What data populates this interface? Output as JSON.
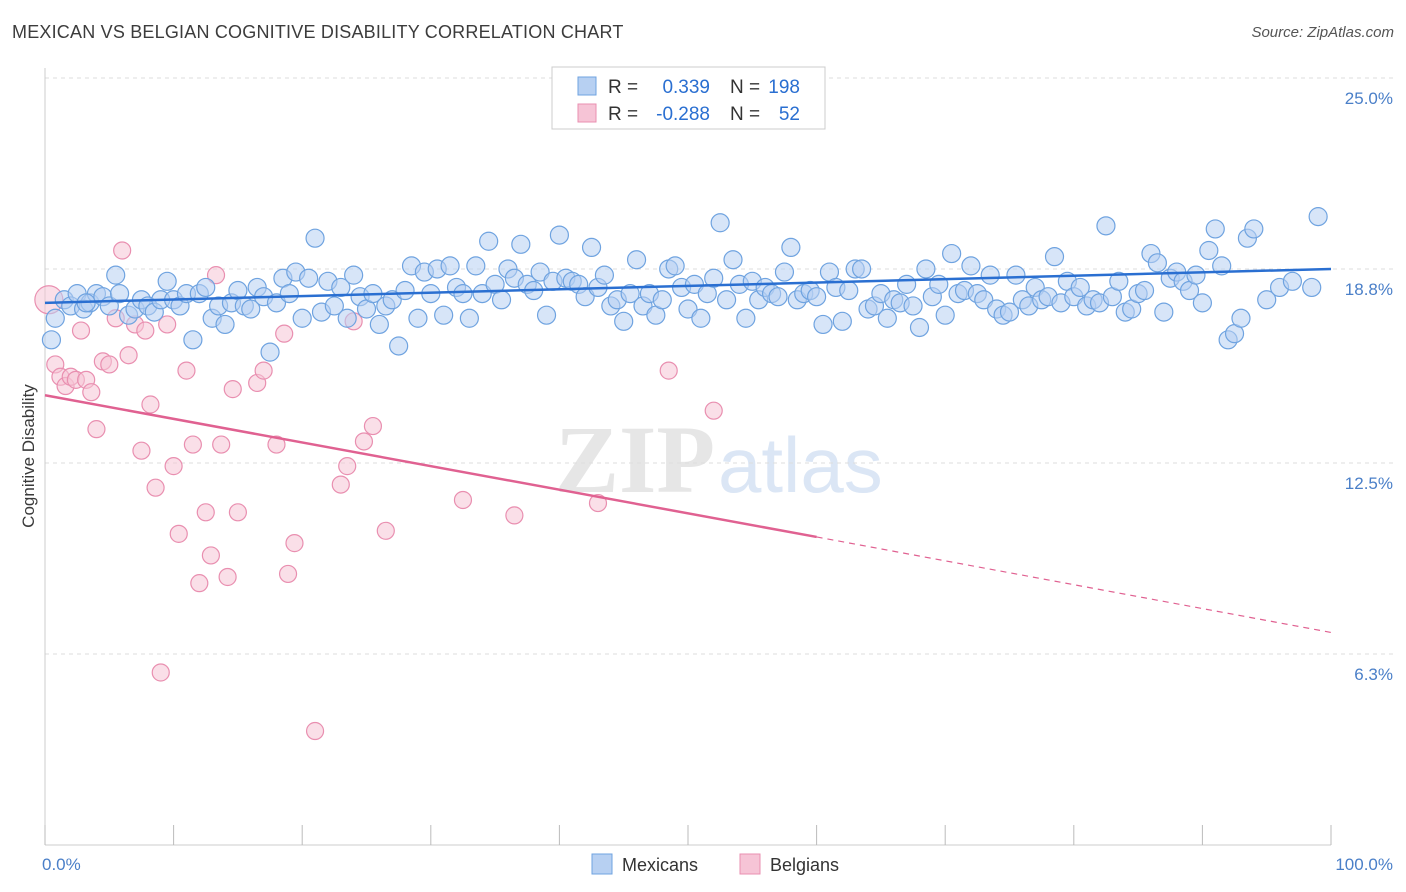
{
  "header": {
    "title": "MEXICAN VS BELGIAN COGNITIVE DISABILITY CORRELATION CHART",
    "source": "Source: ZipAtlas.com"
  },
  "watermark": {
    "zip": "ZIP",
    "atlas": "atlas"
  },
  "colors": {
    "mexicans": "#6fa3e0",
    "mexicans_fill": "#b7d0f2",
    "mexicans_line": "#2a6fd1",
    "belgians": "#e98fb0",
    "belgians_fill": "#f6c4d6",
    "belgians_line": "#e06191",
    "tick_text": "#4a7fc8",
    "grid": "#dddddd"
  },
  "legend": {
    "rows": [
      {
        "r_label": "R =",
        "r_value": "0.339",
        "n_label": "N =",
        "n_value": "198"
      },
      {
        "r_label": "R =",
        "r_value": "-0.288",
        "n_label": "N =",
        "n_value": "52"
      }
    ]
  },
  "chart_data": {
    "type": "scatter",
    "title": "MEXICAN VS BELGIAN COGNITIVE DISABILITY CORRELATION CHART",
    "xlabel": "",
    "ylabel": "Cognitive Disability",
    "xlim": [
      0,
      100
    ],
    "ylim": [
      0,
      26.0
    ],
    "y_ticks": [
      {
        "value": 6.3,
        "label": "6.3%"
      },
      {
        "value": 12.5,
        "label": "12.5%"
      },
      {
        "value": 18.8,
        "label": "18.8%"
      },
      {
        "value": 25.0,
        "label": "25.0%"
      }
    ],
    "x_tick_labels": {
      "min": "0.0%",
      "max": "100.0%"
    },
    "grid": true,
    "legend_position": "top-center",
    "series": [
      {
        "name": "Mexicans",
        "r": 0.339,
        "n": 198,
        "trend": {
          "x": [
            0,
            100
          ],
          "y": [
            17.7,
            18.8
          ]
        },
        "points": [
          [
            0.5,
            16.5
          ],
          [
            0.8,
            17.2
          ],
          [
            1.5,
            17.8
          ],
          [
            2.0,
            17.6
          ],
          [
            2.5,
            18.0
          ],
          [
            3.0,
            17.5
          ],
          [
            3.5,
            17.7
          ],
          [
            4.0,
            18.0
          ],
          [
            4.5,
            17.9
          ],
          [
            5.0,
            17.6
          ],
          [
            5.5,
            18.6
          ],
          [
            5.8,
            18.0
          ],
          [
            6.5,
            17.3
          ],
          [
            7.0,
            17.5
          ],
          [
            7.5,
            17.8
          ],
          [
            8.0,
            17.6
          ],
          [
            8.5,
            17.4
          ],
          [
            9.0,
            17.8
          ],
          [
            9.5,
            18.4
          ],
          [
            10.0,
            17.8
          ],
          [
            10.5,
            17.6
          ],
          [
            11.0,
            18.0
          ],
          [
            11.5,
            16.5
          ],
          [
            12.0,
            18.0
          ],
          [
            12.5,
            18.2
          ],
          [
            13.0,
            17.2
          ],
          [
            13.5,
            17.6
          ],
          [
            14.0,
            17.0
          ],
          [
            14.5,
            17.7
          ],
          [
            15.0,
            18.1
          ],
          [
            15.5,
            17.6
          ],
          [
            16.0,
            17.5
          ],
          [
            16.5,
            18.2
          ],
          [
            17.0,
            17.9
          ],
          [
            17.5,
            16.1
          ],
          [
            18.0,
            17.7
          ],
          [
            18.5,
            18.5
          ],
          [
            19.0,
            18.0
          ],
          [
            19.5,
            18.7
          ],
          [
            20.0,
            17.2
          ],
          [
            20.5,
            18.5
          ],
          [
            21.0,
            19.8
          ],
          [
            21.5,
            17.4
          ],
          [
            22.0,
            18.4
          ],
          [
            22.5,
            17.6
          ],
          [
            23.0,
            18.2
          ],
          [
            23.5,
            17.2
          ],
          [
            24.0,
            18.6
          ],
          [
            24.5,
            17.9
          ],
          [
            25.0,
            17.5
          ],
          [
            25.5,
            18.0
          ],
          [
            26.0,
            17.0
          ],
          [
            26.5,
            17.6
          ],
          [
            27.0,
            17.8
          ],
          [
            27.5,
            16.3
          ],
          [
            28.0,
            18.1
          ],
          [
            28.5,
            18.9
          ],
          [
            29.0,
            17.2
          ],
          [
            29.5,
            18.7
          ],
          [
            30.0,
            18.0
          ],
          [
            30.5,
            18.8
          ],
          [
            31.0,
            17.3
          ],
          [
            31.5,
            18.9
          ],
          [
            32.0,
            18.2
          ],
          [
            32.5,
            18.0
          ],
          [
            33.0,
            17.2
          ],
          [
            33.5,
            18.9
          ],
          [
            34.0,
            18.0
          ],
          [
            34.5,
            19.7
          ],
          [
            35.0,
            18.3
          ],
          [
            35.5,
            17.8
          ],
          [
            36.0,
            18.8
          ],
          [
            36.5,
            18.5
          ],
          [
            37.0,
            19.6
          ],
          [
            37.5,
            18.3
          ],
          [
            38.0,
            18.1
          ],
          [
            38.5,
            18.7
          ],
          [
            39.0,
            17.3
          ],
          [
            39.5,
            18.4
          ],
          [
            40.0,
            19.9
          ],
          [
            40.5,
            18.5
          ],
          [
            41.0,
            18.4
          ],
          [
            41.5,
            18.3
          ],
          [
            42.0,
            17.9
          ],
          [
            42.5,
            19.5
          ],
          [
            43.0,
            18.2
          ],
          [
            43.5,
            18.6
          ],
          [
            44.0,
            17.6
          ],
          [
            44.5,
            17.8
          ],
          [
            45.0,
            17.1
          ],
          [
            45.5,
            18.0
          ],
          [
            46.0,
            19.1
          ],
          [
            46.5,
            17.6
          ],
          [
            47.0,
            18.0
          ],
          [
            47.5,
            17.3
          ],
          [
            48.0,
            17.8
          ],
          [
            48.5,
            18.8
          ],
          [
            49.0,
            18.9
          ],
          [
            49.5,
            18.2
          ],
          [
            50.0,
            17.5
          ],
          [
            50.5,
            18.3
          ],
          [
            51.0,
            17.2
          ],
          [
            51.5,
            18.0
          ],
          [
            52.0,
            18.5
          ],
          [
            52.5,
            20.3
          ],
          [
            53.0,
            17.8
          ],
          [
            53.5,
            19.1
          ],
          [
            54.0,
            18.3
          ],
          [
            54.5,
            17.2
          ],
          [
            55.0,
            18.4
          ],
          [
            55.5,
            17.8
          ],
          [
            56.0,
            18.2
          ],
          [
            56.5,
            18.0
          ],
          [
            57.0,
            17.9
          ],
          [
            57.5,
            18.7
          ],
          [
            58.0,
            19.5
          ],
          [
            58.5,
            17.8
          ],
          [
            59.0,
            18.0
          ],
          [
            59.5,
            18.1
          ],
          [
            60.0,
            17.9
          ],
          [
            60.5,
            17.0
          ],
          [
            61.0,
            18.7
          ],
          [
            61.5,
            18.2
          ],
          [
            62.0,
            17.1
          ],
          [
            62.5,
            18.1
          ],
          [
            63.0,
            18.8
          ],
          [
            63.5,
            18.8
          ],
          [
            64.0,
            17.5
          ],
          [
            64.5,
            17.6
          ],
          [
            65.0,
            18.0
          ],
          [
            65.5,
            17.2
          ],
          [
            66.0,
            17.8
          ],
          [
            66.5,
            17.7
          ],
          [
            67.0,
            18.3
          ],
          [
            67.5,
            17.6
          ],
          [
            68.0,
            16.9
          ],
          [
            68.5,
            18.8
          ],
          [
            69.0,
            17.9
          ],
          [
            69.5,
            18.3
          ],
          [
            70.0,
            17.3
          ],
          [
            70.5,
            19.3
          ],
          [
            71.0,
            18.0
          ],
          [
            71.5,
            18.1
          ],
          [
            72.0,
            18.9
          ],
          [
            72.5,
            18.0
          ],
          [
            73.0,
            17.8
          ],
          [
            73.5,
            18.6
          ],
          [
            74.0,
            17.5
          ],
          [
            74.5,
            17.3
          ],
          [
            75.0,
            17.4
          ],
          [
            75.5,
            18.6
          ],
          [
            76.0,
            17.8
          ],
          [
            76.5,
            17.6
          ],
          [
            77.0,
            18.2
          ],
          [
            77.5,
            17.8
          ],
          [
            78.0,
            17.9
          ],
          [
            78.5,
            19.2
          ],
          [
            79.0,
            17.7
          ],
          [
            79.5,
            18.4
          ],
          [
            80.0,
            17.9
          ],
          [
            80.5,
            18.2
          ],
          [
            81.0,
            17.6
          ],
          [
            81.5,
            17.8
          ],
          [
            82.0,
            17.7
          ],
          [
            82.5,
            20.2
          ],
          [
            83.0,
            17.9
          ],
          [
            83.5,
            18.4
          ],
          [
            84.0,
            17.4
          ],
          [
            84.5,
            17.5
          ],
          [
            85.0,
            18.0
          ],
          [
            85.5,
            18.1
          ],
          [
            86.0,
            19.3
          ],
          [
            86.5,
            19.0
          ],
          [
            87.0,
            17.4
          ],
          [
            87.5,
            18.5
          ],
          [
            88.0,
            18.7
          ],
          [
            88.5,
            18.4
          ],
          [
            89.0,
            18.1
          ],
          [
            89.5,
            18.6
          ],
          [
            90.0,
            17.7
          ],
          [
            90.5,
            19.4
          ],
          [
            91.0,
            20.1
          ],
          [
            91.5,
            18.9
          ],
          [
            92.0,
            16.5
          ],
          [
            92.5,
            16.7
          ],
          [
            93.0,
            17.2
          ],
          [
            93.5,
            19.8
          ],
          [
            94.0,
            20.1
          ],
          [
            95.0,
            17.8
          ],
          [
            96.0,
            18.2
          ],
          [
            97.0,
            18.4
          ],
          [
            98.5,
            18.2
          ],
          [
            99.0,
            20.5
          ],
          [
            3.2,
            17.7
          ]
        ]
      },
      {
        "name": "Belgians",
        "r": -0.288,
        "n": 52,
        "trend": {
          "x": [
            0,
            60
          ],
          "y": [
            14.7,
            10.1
          ]
        },
        "trend_extension": {
          "x": [
            60,
            100
          ],
          "y": [
            10.1,
            7.0
          ]
        },
        "points": [
          [
            0.3,
            17.8
          ],
          [
            0.8,
            15.7
          ],
          [
            1.2,
            15.3
          ],
          [
            1.6,
            15.0
          ],
          [
            2.0,
            15.3
          ],
          [
            2.4,
            15.2
          ],
          [
            2.8,
            16.8
          ],
          [
            3.2,
            15.2
          ],
          [
            3.6,
            14.8
          ],
          [
            4.0,
            13.6
          ],
          [
            4.5,
            15.8
          ],
          [
            5.0,
            15.7
          ],
          [
            5.5,
            17.2
          ],
          [
            6.0,
            19.4
          ],
          [
            6.5,
            16.0
          ],
          [
            7.0,
            17.0
          ],
          [
            7.5,
            12.9
          ],
          [
            7.8,
            16.8
          ],
          [
            8.2,
            14.4
          ],
          [
            8.6,
            11.7
          ],
          [
            9.0,
            5.7
          ],
          [
            9.5,
            17.0
          ],
          [
            10.0,
            12.4
          ],
          [
            10.4,
            10.2
          ],
          [
            11.0,
            15.5
          ],
          [
            11.5,
            13.1
          ],
          [
            12.0,
            8.6
          ],
          [
            12.5,
            10.9
          ],
          [
            12.9,
            9.5
          ],
          [
            13.3,
            18.6
          ],
          [
            13.7,
            13.1
          ],
          [
            14.2,
            8.8
          ],
          [
            14.6,
            14.9
          ],
          [
            15.0,
            10.9
          ],
          [
            16.5,
            15.1
          ],
          [
            17.0,
            15.5
          ],
          [
            18.0,
            13.1
          ],
          [
            18.6,
            16.7
          ],
          [
            18.9,
            8.9
          ],
          [
            19.4,
            9.9
          ],
          [
            21.0,
            3.8
          ],
          [
            23.0,
            11.8
          ],
          [
            23.5,
            12.4
          ],
          [
            24.0,
            17.1
          ],
          [
            24.8,
            13.2
          ],
          [
            25.5,
            13.7
          ],
          [
            26.5,
            10.3
          ],
          [
            32.5,
            11.3
          ],
          [
            36.5,
            10.8
          ],
          [
            43.0,
            11.2
          ],
          [
            48.5,
            15.5
          ],
          [
            52.0,
            14.2
          ]
        ]
      }
    ],
    "legend_entries": [
      "Mexicans",
      "Belgians"
    ]
  }
}
